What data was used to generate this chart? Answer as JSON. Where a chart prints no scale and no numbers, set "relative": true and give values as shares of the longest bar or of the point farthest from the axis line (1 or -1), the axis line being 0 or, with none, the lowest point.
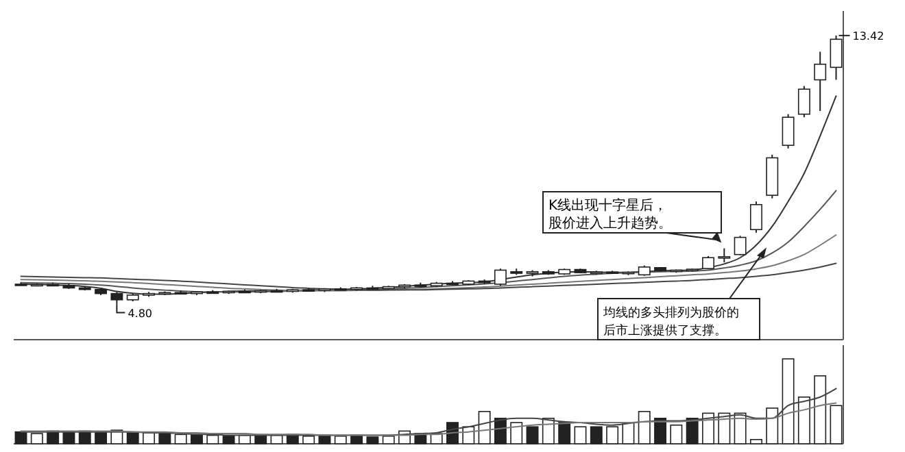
{
  "chart_data": [
    {
      "type": "candlestick",
      "categories": [
        null,
        null,
        null,
        null,
        null,
        null,
        null,
        null,
        null,
        null,
        null,
        null,
        null,
        null,
        null,
        null,
        null,
        null,
        null,
        null,
        null,
        null,
        null,
        null,
        null,
        null,
        null,
        null,
        null,
        null,
        null,
        null,
        null,
        null,
        null,
        null,
        null,
        null,
        null,
        null,
        null,
        null,
        null,
        null,
        null,
        null,
        null,
        null,
        null,
        null,
        null,
        null
      ],
      "ohlc": [
        [
          5.45,
          5.5,
          5.4,
          5.42
        ],
        [
          5.42,
          5.48,
          5.38,
          5.44
        ],
        [
          5.44,
          5.5,
          5.4,
          5.41
        ],
        [
          5.41,
          5.46,
          5.3,
          5.33
        ],
        [
          5.33,
          5.38,
          5.25,
          5.28
        ],
        [
          5.28,
          5.3,
          5.1,
          5.15
        ],
        [
          5.15,
          5.2,
          4.8,
          4.95
        ],
        [
          4.95,
          5.15,
          4.9,
          5.1
        ],
        [
          5.1,
          5.2,
          5.05,
          5.15
        ],
        [
          5.15,
          5.22,
          5.1,
          5.18
        ],
        [
          5.18,
          5.25,
          5.12,
          5.15
        ],
        [
          5.15,
          5.22,
          5.1,
          5.2
        ],
        [
          5.2,
          5.26,
          5.15,
          5.18
        ],
        [
          5.18,
          5.24,
          5.14,
          5.22
        ],
        [
          5.22,
          5.28,
          5.18,
          5.2
        ],
        [
          5.2,
          5.27,
          5.16,
          5.24
        ],
        [
          5.24,
          5.3,
          5.2,
          5.22
        ],
        [
          5.22,
          5.3,
          5.18,
          5.27
        ],
        [
          5.27,
          5.32,
          5.22,
          5.25
        ],
        [
          5.25,
          5.32,
          5.2,
          5.3
        ],
        [
          5.3,
          5.35,
          5.25,
          5.28
        ],
        [
          5.28,
          5.36,
          5.24,
          5.33
        ],
        [
          5.33,
          5.4,
          5.28,
          5.31
        ],
        [
          5.31,
          5.4,
          5.28,
          5.37
        ],
        [
          5.37,
          5.45,
          5.32,
          5.42
        ],
        [
          5.42,
          5.5,
          5.38,
          5.4
        ],
        [
          5.4,
          5.52,
          5.36,
          5.48
        ],
        [
          5.48,
          5.55,
          5.42,
          5.45
        ],
        [
          5.45,
          5.58,
          5.42,
          5.55
        ],
        [
          5.55,
          5.6,
          5.45,
          5.5
        ],
        [
          5.45,
          5.95,
          5.4,
          5.9
        ],
        [
          5.85,
          5.95,
          5.75,
          5.8
        ],
        [
          5.8,
          5.9,
          5.7,
          5.85
        ],
        [
          5.85,
          5.9,
          5.75,
          5.78
        ],
        [
          5.78,
          5.95,
          5.75,
          5.92
        ],
        [
          5.92,
          5.95,
          5.8,
          5.82
        ],
        [
          5.82,
          5.88,
          5.76,
          5.84
        ],
        [
          5.84,
          5.88,
          5.78,
          5.8
        ],
        [
          5.8,
          5.86,
          5.74,
          5.83
        ],
        [
          5.75,
          6.05,
          5.72,
          6.0
        ],
        [
          5.98,
          6.0,
          5.85,
          5.88
        ],
        [
          5.88,
          5.92,
          5.82,
          5.9
        ],
        [
          5.9,
          5.95,
          5.85,
          5.93
        ],
        [
          5.95,
          6.35,
          5.93,
          6.3
        ],
        [
          6.32,
          6.6,
          6.15,
          6.33
        ],
        [
          6.4,
          7.0,
          6.38,
          6.95
        ],
        [
          7.2,
          8.1,
          7.1,
          8.0
        ],
        [
          8.3,
          9.6,
          8.2,
          9.5
        ],
        [
          9.9,
          10.9,
          9.8,
          10.8
        ],
        [
          10.9,
          11.8,
          10.8,
          11.7
        ],
        [
          12.0,
          12.9,
          11.0,
          12.5
        ],
        [
          12.4,
          13.42,
          12.0,
          13.3
        ]
      ],
      "series": [
        {
          "type": "line",
          "color": "#333333",
          "values": [
            5.45,
            5.44,
            5.43,
            5.41,
            5.38,
            5.32,
            5.22,
            5.16,
            5.13,
            5.13,
            5.15,
            5.18,
            5.2,
            5.22,
            5.23,
            5.24,
            5.25,
            5.25,
            5.26,
            5.27,
            5.28,
            5.3,
            5.32,
            5.35,
            5.38,
            5.42,
            5.45,
            5.48,
            5.5,
            5.52,
            5.6,
            5.68,
            5.75,
            5.8,
            5.84,
            5.85,
            5.84,
            5.83,
            5.83,
            5.86,
            5.88,
            5.89,
            5.9,
            5.98,
            6.1,
            6.3,
            6.7,
            7.3,
            8.1,
            9.0,
            10.2,
            11.48
          ]
        },
        {
          "type": "line",
          "color": "#555555",
          "values": [
            5.5,
            5.49,
            5.48,
            5.47,
            5.45,
            5.42,
            5.38,
            5.33,
            5.29,
            5.26,
            5.23,
            5.21,
            5.2,
            5.2,
            5.2,
            5.21,
            5.22,
            5.23,
            5.24,
            5.25,
            5.26,
            5.27,
            5.28,
            5.3,
            5.32,
            5.34,
            5.37,
            5.4,
            5.43,
            5.46,
            5.5,
            5.55,
            5.6,
            5.65,
            5.7,
            5.74,
            5.77,
            5.8,
            5.82,
            5.84,
            5.85,
            5.86,
            5.87,
            5.9,
            5.97,
            6.06,
            6.2,
            6.45,
            6.8,
            7.3,
            7.85,
            8.45
          ]
        },
        {
          "type": "line",
          "color": "#777777",
          "values": [
            5.6,
            5.59,
            5.58,
            5.57,
            5.56,
            5.54,
            5.52,
            5.5,
            5.47,
            5.44,
            5.41,
            5.38,
            5.35,
            5.32,
            5.3,
            5.28,
            5.26,
            5.25,
            5.24,
            5.24,
            5.24,
            5.25,
            5.25,
            5.26,
            5.27,
            5.28,
            5.3,
            5.32,
            5.34,
            5.36,
            5.39,
            5.42,
            5.45,
            5.48,
            5.51,
            5.54,
            5.57,
            5.6,
            5.63,
            5.66,
            5.69,
            5.72,
            5.75,
            5.78,
            5.82,
            5.87,
            5.94,
            6.04,
            6.2,
            6.4,
            6.7,
            7.03
          ]
        },
        {
          "type": "line",
          "color": "#444444",
          "values": [
            5.7,
            5.69,
            5.68,
            5.67,
            5.66,
            5.65,
            5.63,
            5.61,
            5.59,
            5.57,
            5.55,
            5.52,
            5.49,
            5.46,
            5.43,
            5.4,
            5.37,
            5.34,
            5.32,
            5.3,
            5.29,
            5.28,
            5.27,
            5.27,
            5.27,
            5.27,
            5.28,
            5.29,
            5.3,
            5.31,
            5.33,
            5.35,
            5.37,
            5.39,
            5.41,
            5.43,
            5.45,
            5.47,
            5.49,
            5.51,
            5.53,
            5.55,
            5.57,
            5.6,
            5.63,
            5.66,
            5.7,
            5.75,
            5.82,
            5.9,
            6.0,
            6.12
          ]
        }
      ],
      "annotations": [
        "13.42",
        "4.80",
        "K线出现十字星后，股价进入上升趋势。",
        "均线的多头排列为股价的后市上涨提供了支撑。"
      ]
    },
    {
      "type": "bar",
      "relative": true,
      "categories": [
        null,
        null,
        null,
        null,
        null,
        null,
        null,
        null,
        null,
        null,
        null,
        null,
        null,
        null,
        null,
        null,
        null,
        null,
        null,
        null,
        null,
        null,
        null,
        null,
        null,
        null,
        null,
        null,
        null,
        null,
        null,
        null,
        null,
        null,
        null,
        null,
        null,
        null,
        null,
        null,
        null,
        null,
        null,
        null,
        null,
        null,
        null,
        null,
        null,
        null,
        null,
        null
      ],
      "values": [
        0.14,
        0.12,
        0.15,
        0.14,
        0.15,
        0.13,
        0.16,
        0.14,
        0.13,
        0.12,
        0.11,
        0.1,
        0.1,
        0.09,
        0.1,
        0.09,
        0.1,
        0.11,
        0.09,
        0.1,
        0.09,
        0.1,
        0.08,
        0.09,
        0.15,
        0.12,
        0.12,
        0.25,
        0.2,
        0.38,
        0.3,
        0.25,
        0.2,
        0.3,
        0.25,
        0.2,
        0.2,
        0.2,
        0.25,
        0.38,
        0.3,
        0.22,
        0.3,
        0.36,
        0.36,
        0.36,
        0.05,
        0.42,
        1.0,
        0.55,
        0.8,
        0.45
      ],
      "colors": [
        "#222222",
        "#ffffff",
        "#222222",
        "#222222",
        "#222222",
        "#222222",
        "#ffffff",
        "#222222",
        "#ffffff",
        "#222222",
        "#ffffff",
        "#222222",
        "#ffffff",
        "#222222",
        "#ffffff",
        "#222222",
        "#ffffff",
        "#222222",
        "#ffffff",
        "#222222",
        "#ffffff",
        "#222222",
        "#222222",
        "#ffffff",
        "#ffffff",
        "#222222",
        "#ffffff",
        "#222222",
        "#ffffff",
        "#ffffff",
        "#222222",
        "#ffffff",
        "#222222",
        "#ffffff",
        "#222222",
        "#ffffff",
        "#222222",
        "#ffffff",
        "#ffffff",
        "#ffffff",
        "#222222",
        "#ffffff",
        "#222222",
        "#ffffff",
        "#ffffff",
        "#ffffff",
        "#ffffff",
        "#ffffff",
        "#ffffff",
        "#ffffff",
        "#ffffff",
        "#ffffff"
      ],
      "series": [
        {
          "type": "line",
          "color": "#444444",
          "values": [
            0.14,
            0.14,
            0.14,
            0.14,
            0.14,
            0.14,
            0.14,
            0.14,
            0.13,
            0.13,
            0.12,
            0.11,
            0.11,
            0.1,
            0.1,
            0.1,
            0.1,
            0.1,
            0.1,
            0.1,
            0.1,
            0.1,
            0.1,
            0.1,
            0.11,
            0.12,
            0.13,
            0.17,
            0.2,
            0.24,
            0.28,
            0.3,
            0.3,
            0.28,
            0.26,
            0.25,
            0.23,
            0.22,
            0.24,
            0.26,
            0.27,
            0.27,
            0.28,
            0.3,
            0.32,
            0.34,
            0.3,
            0.3,
            0.45,
            0.5,
            0.55,
            0.65
          ]
        },
        {
          "type": "line",
          "color": "#777777",
          "values": [
            0.15,
            0.15,
            0.15,
            0.15,
            0.15,
            0.15,
            0.15,
            0.14,
            0.14,
            0.14,
            0.13,
            0.13,
            0.12,
            0.12,
            0.12,
            0.11,
            0.11,
            0.11,
            0.11,
            0.1,
            0.1,
            0.1,
            0.1,
            0.1,
            0.1,
            0.11,
            0.11,
            0.13,
            0.14,
            0.16,
            0.18,
            0.2,
            0.22,
            0.23,
            0.24,
            0.25,
            0.25,
            0.25,
            0.25,
            0.26,
            0.26,
            0.26,
            0.27,
            0.28,
            0.29,
            0.3,
            0.29,
            0.3,
            0.36,
            0.4,
            0.45,
            0.48
          ]
        }
      ]
    }
  ]
}
